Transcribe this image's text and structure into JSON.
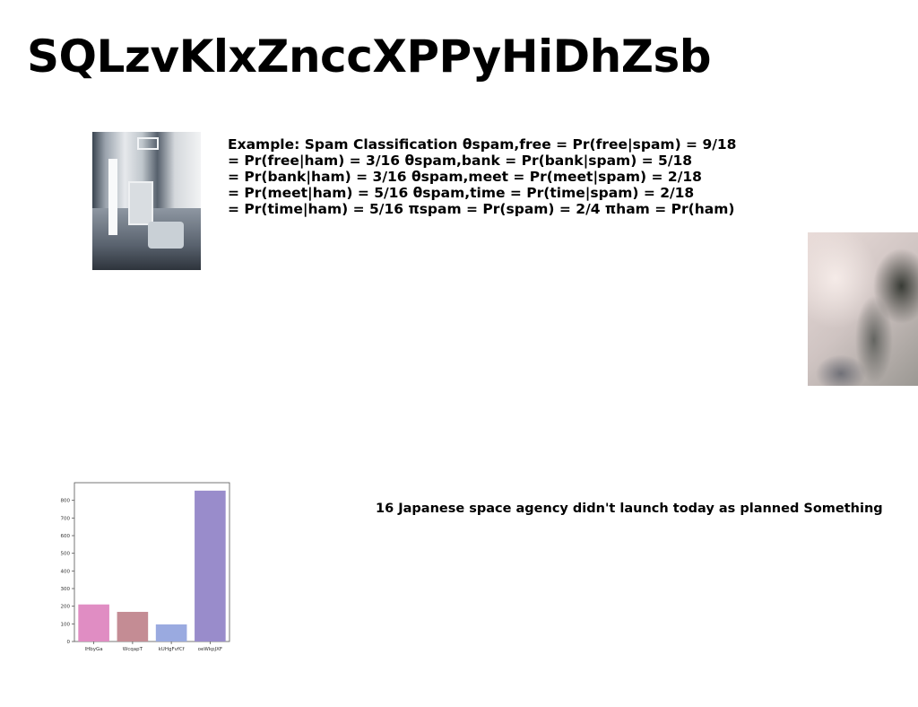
{
  "page": {
    "title": "SQLzvKlxZnccXPPyHiDhZsb"
  },
  "text_block": {
    "lines": [
      "Example: Spam Classification θspam,free = Pr(free|spam) = 9/18",
      "= Pr(free|ham) = 3/16 θspam,bank = Pr(bank|spam) = 5/18",
      "= Pr(bank|ham) = 3/16 θspam,meet = Pr(meet|spam) = 2/18",
      "= Pr(meet|ham) = 5/16 θspam,time = Pr(time|spam) = 2/18",
      "= Pr(time|ham) = 5/16 πspam = Pr(spam) = 2/4 πham = Pr(ham)"
    ]
  },
  "caption": "16 Japanese space agency didn't launch today as planned Something",
  "chart_data": {
    "type": "bar",
    "categories": [
      "lHbyGa",
      "WcqapT",
      "kUHgFvfCf",
      "oeWkpJXF"
    ],
    "values": [
      210,
      168,
      97,
      855
    ],
    "colors": [
      "#e08dc3",
      "#c48c94",
      "#9aaae0",
      "#998ccb"
    ],
    "yticks": [
      0,
      100,
      200,
      300,
      400,
      500,
      600,
      700,
      800
    ],
    "ylim": [
      0,
      900
    ],
    "grid": false,
    "title": "",
    "xlabel": "",
    "ylabel": ""
  }
}
